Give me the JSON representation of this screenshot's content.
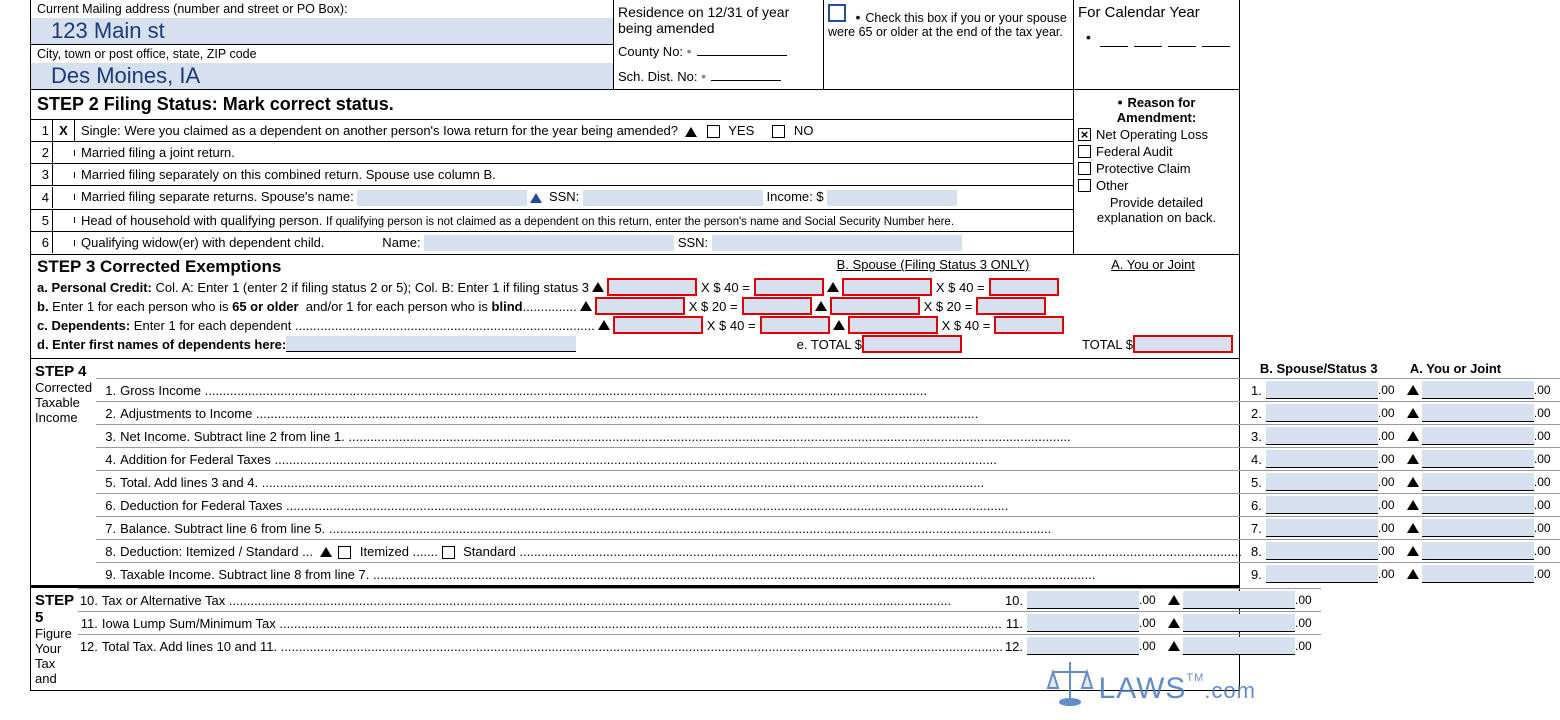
{
  "top": {
    "mailing_label": "Current Mailing address (number and street or PO Box):",
    "mailing_value": "123 Main st",
    "city_label": "City, town or post office, state, ZIP code",
    "city_value": "Des Moines, IA",
    "residence_label": "Residence on 12/31 of year being amended",
    "county_label": "County No:",
    "schdist_label": "Sch. Dist. No:",
    "age_text": "Check this box if you or your spouse were 65 or older at the end of the tax year.",
    "calyear_label": "For Calendar Year"
  },
  "step2": {
    "title": "STEP 2 Filing Status: Mark correct status.",
    "rows": [
      {
        "n": "1",
        "chk": "X",
        "txt": "Single: Were you claimed as a dependent on another person's Iowa return for the year being amended?",
        "yn": true,
        "yes": "YES",
        "no": "NO"
      },
      {
        "n": "2",
        "txt": "Married filing a joint return."
      },
      {
        "n": "3",
        "txt": "Married filing separately on this combined return. Spouse use column B."
      },
      {
        "n": "4",
        "txt": "Married filing separate returns. Spouse's name:",
        "tail": "ssn_income"
      },
      {
        "n": "5",
        "txt": "Head of household with qualifying person.",
        "tail": "qual"
      },
      {
        "n": "6",
        "txt": "Qualifying widow(er) with dependent child.",
        "tail": "name_ssn"
      }
    ],
    "ssn": "SSN:",
    "income": "Income: $",
    "name": "Name:",
    "qual_note": "If qualifying person is not claimed as a dependent on this return, enter the person's name and Social Security Number here."
  },
  "reason": {
    "hdr": "Reason for Amendment:",
    "items": [
      "Net Operating Loss",
      "Federal Audit",
      "Protective Claim",
      "Other"
    ],
    "note": "Provide detailed explanation on back."
  },
  "step3": {
    "title": "STEP 3 Corrected Exemptions",
    "colB": "B. Spouse (Filing Status 3 ONLY)",
    "colA": "A. You or Joint",
    "a": "a. Personal Credit:",
    "a_note": "Col. A: Enter 1 (enter 2 if filing status 2 or 5); Col. B: Enter 1 if filing status 3",
    "b": "b. Enter 1 for each person who is 65 or older  and/or 1 for each person who is blind",
    "c": "c. Dependents: Enter 1 for each dependent",
    "d": "d. Enter first names of dependents here:",
    "e": "e. TOTAL $",
    "totalA": "TOTAL $",
    "x40": "X $ 40 =",
    "x20": "X $ 20 ="
  },
  "step4": {
    "side_title": "STEP 4",
    "side_sub": "Corrected Taxable Income",
    "colB": "B. Spouse/Status 3",
    "colA": "A. You or Joint",
    "lines": [
      {
        "n": "1",
        "d": "Gross Income"
      },
      {
        "n": "2",
        "d": "Adjustments to Income"
      },
      {
        "n": "3",
        "d": "Net Income. Subtract line 2 from line 1."
      },
      {
        "n": "4",
        "d": "Addition for Federal Taxes"
      },
      {
        "n": "5",
        "d": "Total. Add lines 3 and 4."
      },
      {
        "n": "6",
        "d": "Deduction for Federal Taxes"
      },
      {
        "n": "7",
        "d": "Balance. Subtract line 6 from line 5."
      },
      {
        "n": "8",
        "d": "Deduction: Itemized / Standard ...",
        "opts": true
      },
      {
        "n": "9",
        "d": "Taxable Income. Subtract line 8 from line 7."
      }
    ],
    "itemized": "Itemized",
    "standard": "Standard"
  },
  "step5": {
    "side_title": "STEP 5",
    "side_sub": "Figure Your Tax and",
    "lines": [
      {
        "n": "10",
        "d": "Tax or Alternative Tax"
      },
      {
        "n": "11",
        "d": "Iowa Lump Sum/Minimum Tax"
      },
      {
        "n": "12",
        "d": "Total Tax. Add lines 10 and 11."
      }
    ]
  },
  "watermark": {
    "text": "LAWS",
    "suffix": ".com",
    "tm": "TM"
  }
}
